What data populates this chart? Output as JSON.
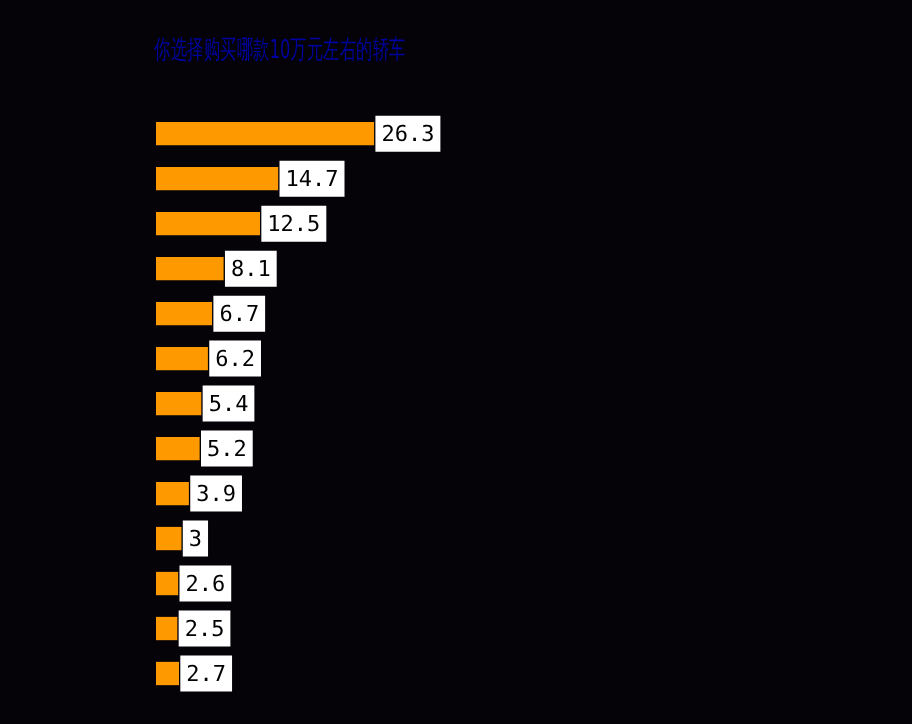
{
  "chart_data": {
    "type": "bar",
    "orientation": "horizontal",
    "title": "你选择购买哪款10万元左右的轿车",
    "categories": [
      null,
      null,
      null,
      null,
      null,
      null,
      null,
      null,
      null,
      null,
      null,
      null,
      null
    ],
    "values": [
      26.3,
      14.7,
      12.5,
      8.1,
      6.7,
      6.2,
      5.4,
      5.2,
      3.9,
      3,
      2.6,
      2.5,
      2.7
    ],
    "color": "#ff9900",
    "data_labels": true
  }
}
